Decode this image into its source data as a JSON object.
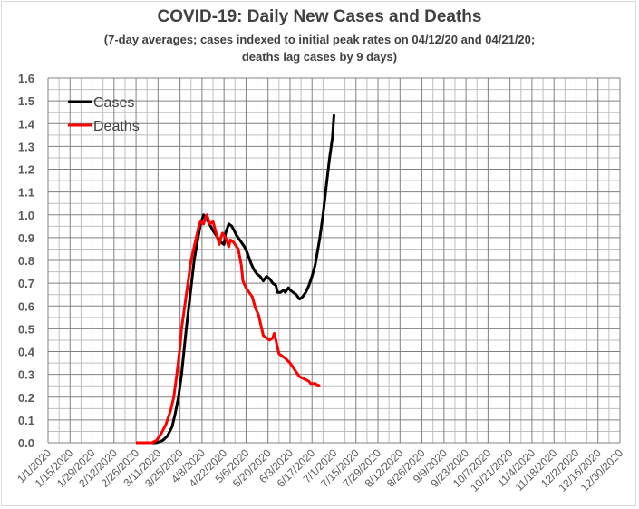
{
  "chart_data": {
    "type": "line",
    "title": "COVID-19: Daily New Cases and Deaths",
    "subtitle_line1": "(7-day averages; cases indexed to initial peak rates on 04/12/20 and 04/21/20;",
    "subtitle_line2": "deaths lag cases by 9 days)",
    "xlabel": "",
    "ylabel": "",
    "x_unit": "days since 1/1/2020",
    "xlim": [
      0,
      364
    ],
    "ylim": [
      0,
      1.6
    ],
    "y_ticks": [
      "0.0",
      "0.1",
      "0.2",
      "0.3",
      "0.4",
      "0.5",
      "0.6",
      "0.7",
      "0.8",
      "0.9",
      "1.0",
      "1.1",
      "1.2",
      "1.3",
      "1.4",
      "1.5",
      "1.6"
    ],
    "x_ticks": [
      "1/1/2020",
      "1/15/2020",
      "1/29/2020",
      "2/12/2020",
      "2/26/2020",
      "3/11/2020",
      "3/25/2020",
      "4/8/2020",
      "4/22/2020",
      "5/6/2020",
      "5/20/2020",
      "6/3/2020",
      "6/17/2020",
      "7/1/2020",
      "7/15/2020",
      "7/29/2020",
      "8/12/2020",
      "8/26/2020",
      "9/9/2020",
      "9/23/2020",
      "10/7/2020",
      "10/21/2020",
      "11/4/2020",
      "11/18/2020",
      "12/2/2020",
      "12/16/2020",
      "12/30/2020"
    ],
    "grid": true,
    "legend_position": "top-left",
    "series": [
      {
        "name": "Cases",
        "color": "#000000",
        "points": [
          [
            56,
            0
          ],
          [
            69,
            0
          ],
          [
            73,
            0.01
          ],
          [
            76,
            0.03
          ],
          [
            79,
            0.07
          ],
          [
            81,
            0.13
          ],
          [
            83,
            0.2
          ],
          [
            85,
            0.3
          ],
          [
            88,
            0.5
          ],
          [
            90,
            0.62
          ],
          [
            93,
            0.8
          ],
          [
            95,
            0.88
          ],
          [
            97,
            0.96
          ],
          [
            99,
            1.0
          ],
          [
            100,
            0.99
          ],
          [
            102,
            0.97
          ],
          [
            105,
            0.93
          ],
          [
            108,
            0.9
          ],
          [
            110,
            0.88
          ],
          [
            112,
            0.87
          ],
          [
            113,
            0.92
          ],
          [
            115,
            0.96
          ],
          [
            117,
            0.95
          ],
          [
            120,
            0.91
          ],
          [
            123,
            0.88
          ],
          [
            125,
            0.86
          ],
          [
            127,
            0.83
          ],
          [
            129,
            0.79
          ],
          [
            131,
            0.76
          ],
          [
            133,
            0.74
          ],
          [
            135,
            0.73
          ],
          [
            137,
            0.71
          ],
          [
            138,
            0.72
          ],
          [
            139,
            0.73
          ],
          [
            141,
            0.72
          ],
          [
            143,
            0.7
          ],
          [
            145,
            0.69
          ],
          [
            146,
            0.66
          ],
          [
            148,
            0.66
          ],
          [
            150,
            0.67
          ],
          [
            151,
            0.66
          ],
          [
            153,
            0.68
          ],
          [
            154,
            0.67
          ],
          [
            156,
            0.66
          ],
          [
            158,
            0.65
          ],
          [
            160,
            0.63
          ],
          [
            162,
            0.64
          ],
          [
            164,
            0.66
          ],
          [
            166,
            0.69
          ],
          [
            168,
            0.73
          ],
          [
            170,
            0.78
          ],
          [
            172,
            0.86
          ],
          [
            173,
            0.9
          ],
          [
            175,
            1.0
          ],
          [
            177,
            1.12
          ],
          [
            179,
            1.24
          ],
          [
            181,
            1.34
          ],
          [
            182,
            1.44
          ]
        ]
      },
      {
        "name": "Deaths",
        "color": "#ff0000",
        "points": [
          [
            56,
            0
          ],
          [
            66,
            0
          ],
          [
            69,
            0.01
          ],
          [
            72,
            0.04
          ],
          [
            75,
            0.08
          ],
          [
            78,
            0.14
          ],
          [
            80,
            0.2
          ],
          [
            82,
            0.3
          ],
          [
            84,
            0.42
          ],
          [
            85,
            0.5
          ],
          [
            87,
            0.6
          ],
          [
            89,
            0.7
          ],
          [
            91,
            0.8
          ],
          [
            93,
            0.86
          ],
          [
            96,
            0.95
          ],
          [
            97,
            0.97
          ],
          [
            99,
            0.96
          ],
          [
            100,
            0.98
          ],
          [
            101,
            1.0
          ],
          [
            103,
            0.96
          ],
          [
            105,
            0.97
          ],
          [
            107,
            0.92
          ],
          [
            109,
            0.87
          ],
          [
            110,
            0.9
          ],
          [
            111,
            0.92
          ],
          [
            113,
            0.9
          ],
          [
            115,
            0.86
          ],
          [
            116,
            0.89
          ],
          [
            118,
            0.88
          ],
          [
            121,
            0.85
          ],
          [
            123,
            0.78
          ],
          [
            124,
            0.71
          ],
          [
            126,
            0.68
          ],
          [
            128,
            0.66
          ],
          [
            130,
            0.64
          ],
          [
            132,
            0.59
          ],
          [
            134,
            0.56
          ],
          [
            136,
            0.5
          ],
          [
            137,
            0.47
          ],
          [
            139,
            0.46
          ],
          [
            141,
            0.45
          ],
          [
            143,
            0.46
          ],
          [
            144,
            0.48
          ],
          [
            146,
            0.42
          ],
          [
            147,
            0.39
          ],
          [
            149,
            0.38
          ],
          [
            151,
            0.37
          ],
          [
            154,
            0.35
          ],
          [
            156,
            0.33
          ],
          [
            158,
            0.31
          ],
          [
            160,
            0.29
          ],
          [
            163,
            0.28
          ],
          [
            166,
            0.27
          ],
          [
            167,
            0.26
          ],
          [
            170,
            0.26
          ],
          [
            172,
            0.25
          ],
          [
            173,
            0.255
          ]
        ]
      }
    ]
  }
}
